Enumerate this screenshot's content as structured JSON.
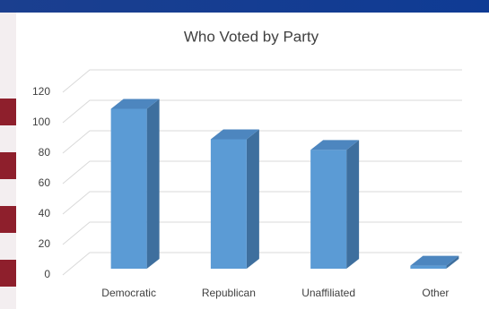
{
  "chart_data": {
    "type": "bar3d",
    "title": "Who Voted by Party",
    "categories": [
      "Democratic",
      "Republican",
      "Unaffiliated",
      "Other"
    ],
    "values": [
      105,
      85,
      78,
      2
    ],
    "color": "#5b9bd5",
    "ylim": [
      0,
      120
    ],
    "yticks": [
      0,
      20,
      40,
      60,
      80,
      100,
      120
    ],
    "grid": true
  }
}
